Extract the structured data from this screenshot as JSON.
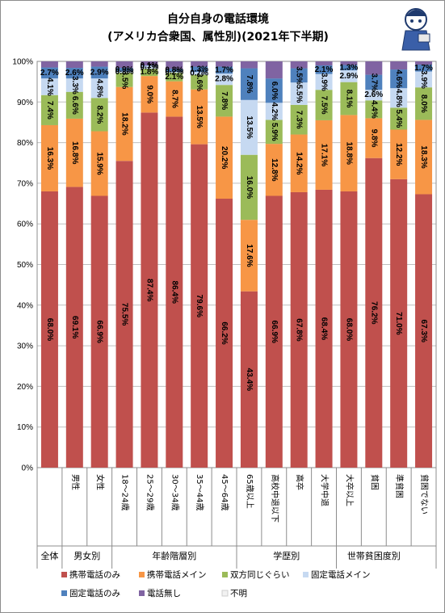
{
  "chart_data": {
    "type": "bar",
    "stacked": true,
    "title": "自分自身の電話環境",
    "subtitle": "(アメリカ合衆国、属性別)(2021年下半期)",
    "ylim": [
      0,
      100
    ],
    "yticks": [
      "0%",
      "10%",
      "20%",
      "30%",
      "40%",
      "50%",
      "60%",
      "70%",
      "80%",
      "90%",
      "100%"
    ],
    "grid": true,
    "legend_position": "bottom",
    "categories": [
      "全体",
      "男性",
      "女性",
      "18〜24歳",
      "25〜29歳",
      "30〜34歳",
      "35〜44歳",
      "45〜64歳",
      "65歳以上",
      "高校中退以下",
      "高卒",
      "大学中退",
      "大卒以上",
      "貧困",
      "準貧困",
      "貧困でない"
    ],
    "groups": [
      {
        "label": "全体",
        "count": 1
      },
      {
        "label": "男女別",
        "count": 2
      },
      {
        "label": "年齢階層別",
        "count": 5
      },
      {
        "label": "学歴別",
        "count": 4
      },
      {
        "label": "世帯貧困度別",
        "count": 3
      }
    ],
    "series": [
      {
        "name": "携帯電話のみ",
        "color": "#c0504d",
        "values": [
          68.0,
          69.1,
          66.9,
          75.5,
          87.4,
          86.4,
          79.6,
          66.2,
          43.4,
          66.9,
          67.8,
          68.4,
          68.0,
          76.2,
          71.0,
          67.3
        ],
        "labels": [
          "68.0%",
          "69.1%",
          "66.9%",
          "75.5%",
          "87.4%",
          "86.4%",
          "79.6%",
          "66.2%",
          "43.4%",
          "66.9%",
          "67.8%",
          "68.4%",
          "68.0%",
          "76.2%",
          "71.0%",
          "67.3%"
        ]
      },
      {
        "name": "携帯電話メイン",
        "color": "#f79646",
        "values": [
          16.3,
          16.8,
          15.9,
          18.2,
          9.0,
          8.7,
          13.5,
          20.2,
          17.6,
          12.8,
          14.2,
          17.1,
          18.8,
          9.8,
          12.2,
          18.3
        ],
        "labels": [
          "16.3%",
          "16.8%",
          "15.9%",
          "18.2%",
          "9.0%",
          "8.7%",
          "13.5%",
          "20.2%",
          "17.6%",
          "12.8%",
          "14.2%",
          "17.1%",
          "18.8%",
          "9.8%",
          "12.2%",
          "18.3%"
        ]
      },
      {
        "name": "双方同じぐらい",
        "color": "#9bbb59",
        "values": [
          7.4,
          6.6,
          8.2,
          3.5,
          1.8,
          2.1,
          3.6,
          7.8,
          16.0,
          5.9,
          7.3,
          7.5,
          8.1,
          4.4,
          5.4,
          8.0
        ],
        "labels": [
          "7.4%",
          "6.6%",
          "8.2%",
          "3.5%",
          "1.8%",
          "2.1%",
          "3.6%",
          "7.8%",
          "16.0%",
          "5.9%",
          "7.3%",
          "7.5%",
          "8.1%",
          "4.4%",
          "5.4%",
          "8.0%"
        ]
      },
      {
        "name": "固定電話メイン",
        "color": "#c6d9f1",
        "values": [
          4.1,
          3.3,
          4.8,
          0.3,
          0.7,
          0.2,
          0.7,
          2.8,
          13.5,
          4.2,
          5.5,
          3.9,
          2.9,
          2.6,
          4.8,
          3.9
        ],
        "labels": [
          "4.1%",
          "3.3%",
          "4.8%",
          "0.3%",
          "0.7%",
          "0.2%",
          "0.7%",
          "2.8%",
          "13.5%",
          "4.2%",
          "5.5%",
          "3.9%",
          "2.9%",
          "2.6%",
          "4.8%",
          "3.9%"
        ]
      },
      {
        "name": "固定電話のみ",
        "color": "#4f81bd",
        "values": [
          2.7,
          2.6,
          2.9,
          0.9,
          0.1,
          0.8,
          1.3,
          1.7,
          7.8,
          6.0,
          3.5,
          2.1,
          1.3,
          3.7,
          4.6,
          1.7
        ],
        "labels": [
          "2.7%",
          "2.6%",
          "2.9%",
          "0.9%",
          "0.1%",
          "0.8%",
          "1.3%",
          "1.7%",
          "7.8%",
          "6.0%",
          "3.5%",
          "2.1%",
          "1.3%",
          "3.7%",
          "4.6%",
          "1.7%"
        ]
      },
      {
        "name": "電話無し",
        "color": "#8064a2",
        "values": [
          1.5,
          1.6,
          1.3,
          1.6,
          1.0,
          1.8,
          1.3,
          1.3,
          1.7,
          4.2,
          1.7,
          1.0,
          0.9,
          3.3,
          2.0,
          0.8
        ],
        "labels": []
      },
      {
        "name": "不明",
        "color": "#f2f2f2",
        "values": [
          0,
          0,
          0,
          0,
          0,
          0,
          0,
          0,
          0,
          0,
          0,
          0,
          0,
          0,
          0,
          0
        ],
        "labels": []
      }
    ]
  }
}
